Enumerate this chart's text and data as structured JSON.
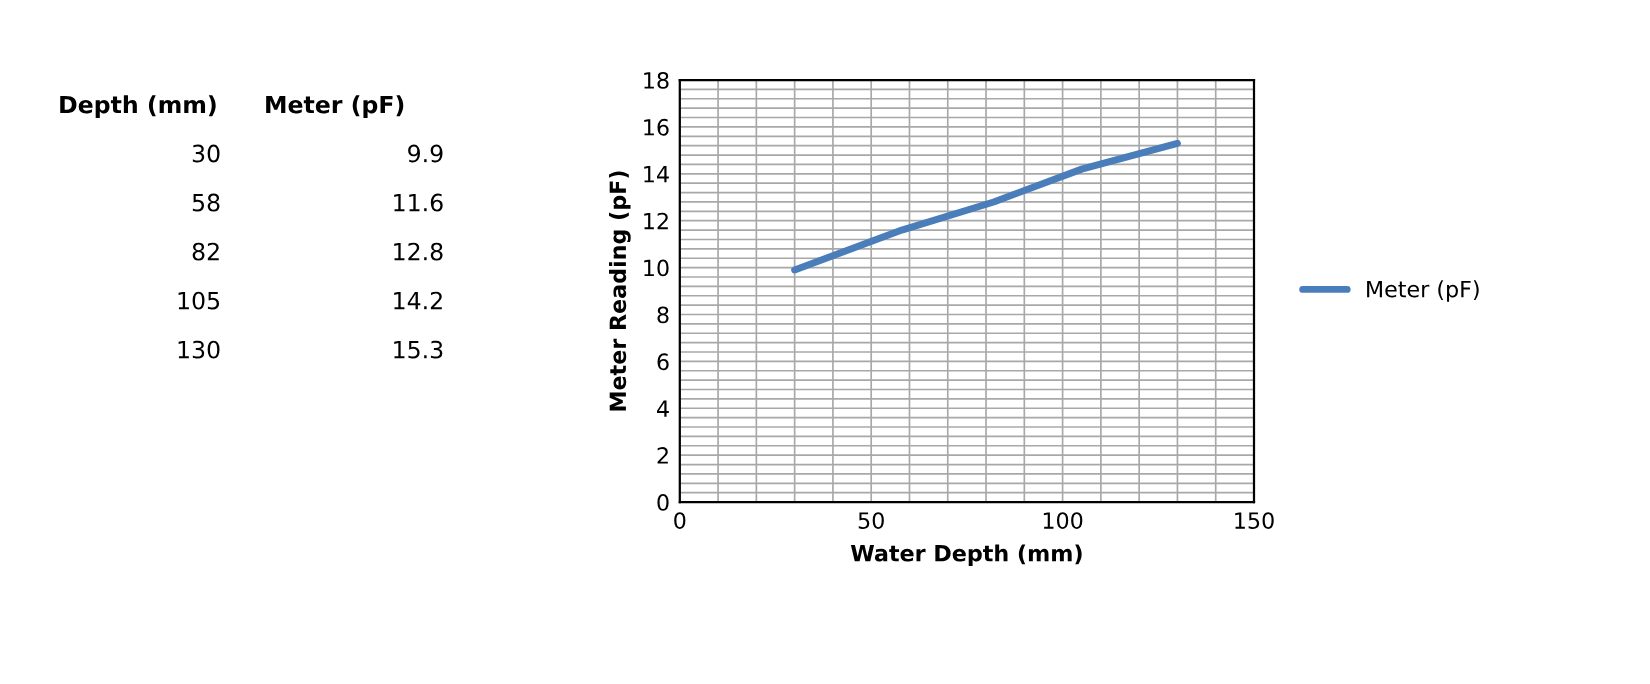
{
  "chart_data": [
    {
      "type": "other",
      "annotations": [
        "Depth (mm)",
        "Meter (pF)",
        "30",
        "9.9",
        "58",
        "11.6",
        "82",
        "12.8",
        "105",
        "14.2",
        "130",
        "15.3"
      ]
    },
    {
      "type": "line",
      "xlabel": "Water Depth (mm)",
      "ylabel": "Meter Reading (pF)",
      "x": [
        30,
        58,
        82,
        105,
        130
      ],
      "series": [
        {
          "name": "Meter (pF)",
          "color": "#4a7ebb",
          "values": [
            9.9,
            11.6,
            12.8,
            14.2,
            15.3
          ]
        }
      ],
      "xlim": [
        0,
        150
      ],
      "xticks": [
        0,
        {
          "value": 10,
          "label": null
        },
        {
          "value": 20,
          "label": null
        },
        {
          "value": 30,
          "label": null
        },
        {
          "value": 40,
          "label": null
        },
        50,
        {
          "value": 60,
          "label": null
        },
        {
          "value": 70,
          "label": null
        },
        {
          "value": 80,
          "label": null
        },
        {
          "value": 90,
          "label": null
        },
        100,
        {
          "value": 110,
          "label": null
        },
        {
          "value": 120,
          "label": null
        },
        {
          "value": 130,
          "label": null
        },
        {
          "value": 140,
          "label": null
        },
        150
      ],
      "ylim": [
        0,
        18
      ],
      "yticks": [
        0,
        {
          "value": 0.4,
          "label": null
        },
        {
          "value": 0.8,
          "label": null
        },
        {
          "value": 1.2,
          "label": null
        },
        {
          "value": 1.6,
          "label": null
        },
        2,
        {
          "value": 2.4,
          "label": null
        },
        {
          "value": 2.8,
          "label": null
        },
        {
          "value": 3.2,
          "label": null
        },
        {
          "value": 3.6,
          "label": null
        },
        4,
        {
          "value": 4.4,
          "label": null
        },
        {
          "value": 4.8,
          "label": null
        },
        {
          "value": 5.2,
          "label": null
        },
        {
          "value": 5.6,
          "label": null
        },
        6,
        {
          "value": 6.4,
          "label": null
        },
        {
          "value": 6.8,
          "label": null
        },
        {
          "value": 7.2,
          "label": null
        },
        {
          "value": 7.6,
          "label": null
        },
        8,
        {
          "value": 8.4,
          "label": null
        },
        {
          "value": 8.8,
          "label": null
        },
        {
          "value": 9.2,
          "label": null
        },
        {
          "value": 9.6,
          "label": null
        },
        10,
        {
          "value": 10.4,
          "label": null
        },
        {
          "value": 10.8,
          "label": null
        },
        {
          "value": 11.2,
          "label": null
        },
        {
          "value": 11.6,
          "label": null
        },
        12,
        {
          "value": 12.4,
          "label": null
        },
        {
          "value": 12.8,
          "label": null
        },
        {
          "value": 13.2,
          "label": null
        },
        {
          "value": 13.6,
          "label": null
        },
        14,
        {
          "value": 14.4,
          "label": null
        },
        {
          "value": 14.8,
          "label": null
        },
        {
          "value": 15.2,
          "label": null
        },
        {
          "value": 15.6,
          "label": null
        },
        16,
        {
          "value": 16.4,
          "label": null
        },
        {
          "value": 16.8,
          "label": null
        },
        {
          "value": 17.2,
          "label": null
        },
        {
          "value": 17.6,
          "label": null
        },
        18
      ],
      "grid": true,
      "legend": "right",
      "marker": "none",
      "line_style": "solid"
    }
  ]
}
